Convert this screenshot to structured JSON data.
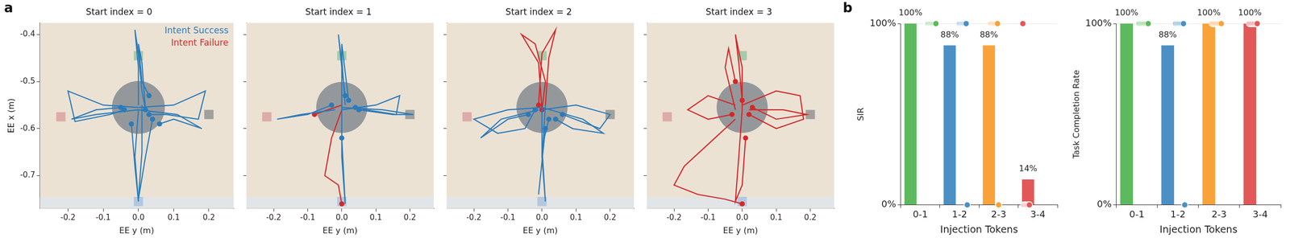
{
  "chart_data": [
    {
      "type": "line",
      "panel_label": "a",
      "title": "Start index = 0",
      "xlabel": "EE y (m)",
      "ylabel": "EE x (m)",
      "xlim": [
        -0.28,
        0.27
      ],
      "xticks": [
        -0.2,
        -0.1,
        {
          "value": 0,
          "label": "0.0"
        },
        0.1,
        0.2
      ],
      "ylim": [
        -0.77,
        -0.375
      ],
      "yticks": [
        -0.7,
        -0.6,
        -0.5,
        -0.4
      ],
      "grid": false,
      "legend": "upper right",
      "marker": "circle",
      "zone": {
        "x": 0,
        "y": -0.555,
        "r": 0.075
      },
      "targets": [
        {
          "x": 0,
          "y": -0.445,
          "color": "#8fc19c"
        },
        {
          "x": -0.22,
          "y": -0.575,
          "color": "#d99a9a"
        },
        {
          "x": 0,
          "y": -0.755,
          "color": "#a3bddc"
        },
        {
          "x": 0.2,
          "y": -0.57,
          "color": "#8a8a8a"
        }
      ],
      "series": [
        {
          "name": "Intent Success",
          "color": "#2b7bba",
          "trajectories": [
            {
              "x": [
                0.0,
                0.0,
                -0.01,
                0.0,
                0.01,
                0.02
              ],
              "y": [
                -0.55,
                -0.47,
                -0.39,
                -0.44,
                -0.52,
                -0.56
              ]
            },
            {
              "x": [
                0.02,
                0.01,
                0.0,
                0.01,
                0.03
              ],
              "y": [
                -0.56,
                -0.46,
                -0.42,
                -0.5,
                -0.53
              ]
            },
            {
              "x": [
                0.0,
                -0.01,
                0.0,
                -0.01,
                -0.02
              ],
              "y": [
                -0.56,
                -0.66,
                -0.755,
                -0.68,
                -0.59
              ]
            },
            {
              "x": [
                0.01,
                0.01,
                0.0,
                0.02,
                0.04
              ],
              "y": [
                -0.55,
                -0.65,
                -0.75,
                -0.66,
                -0.58
              ]
            },
            {
              "x": [
                0.0,
                -0.1,
                -0.2,
                -0.18,
                -0.08,
                -0.04
              ],
              "y": [
                -0.555,
                -0.55,
                -0.52,
                -0.585,
                -0.57,
                -0.56
              ]
            },
            {
              "x": [
                0.0,
                -0.12,
                -0.19,
                -0.12,
                -0.05
              ],
              "y": [
                -0.56,
                -0.57,
                -0.58,
                -0.56,
                -0.555
              ]
            },
            {
              "x": [
                0.0,
                0.1,
                0.19,
                0.17,
                0.08,
                0.03
              ],
              "y": [
                -0.555,
                -0.55,
                -0.52,
                -0.58,
                -0.57,
                -0.57
              ]
            },
            {
              "x": [
                0.0,
                0.11,
                0.18,
                0.1,
                0.06
              ],
              "y": [
                -0.56,
                -0.57,
                -0.6,
                -0.58,
                -0.59
              ]
            }
          ]
        },
        {
          "name": "Intent Failure",
          "color": "#d62728",
          "trajectories": []
        }
      ]
    },
    {
      "type": "line",
      "title": "Start index = 1",
      "xlabel": "EE y (m)",
      "xlim": [
        -0.28,
        0.27
      ],
      "xticks": [
        -0.2,
        -0.1,
        {
          "value": 0,
          "label": "0.0"
        },
        0.1,
        0.2
      ],
      "ylim": [
        -0.77,
        -0.375
      ],
      "yticks": [
        -0.7,
        -0.6,
        -0.5,
        -0.4
      ],
      "grid": false,
      "tick_labels": "x",
      "marker": "circle",
      "zone": {
        "x": 0,
        "y": -0.555,
        "r": 0.075
      },
      "targets": [
        {
          "x": 0,
          "y": -0.445,
          "color": "#8fc19c"
        },
        {
          "x": -0.22,
          "y": -0.575,
          "color": "#d99a9a"
        },
        {
          "x": 0,
          "y": -0.755,
          "color": "#a3bddc"
        },
        {
          "x": 0.2,
          "y": -0.57,
          "color": "#8a8a8a"
        }
      ],
      "series": [
        {
          "name": "Intent Success",
          "color": "#2b7bba",
          "trajectories": [
            {
              "x": [
                0.0,
                0.0,
                -0.01,
                0.0,
                0.01
              ],
              "y": [
                -0.56,
                -0.46,
                -0.4,
                -0.47,
                -0.53
              ]
            },
            {
              "x": [
                0.01,
                0.0,
                0.0,
                0.02
              ],
              "y": [
                -0.55,
                -0.45,
                -0.42,
                -0.54
              ]
            },
            {
              "x": [
                0.0,
                0.0,
                0.01,
                0.0
              ],
              "y": [
                -0.56,
                -0.66,
                -0.76,
                -0.62
              ]
            },
            {
              "x": [
                0.0,
                0.1,
                0.17,
                0.16,
                0.07,
                0.04
              ],
              "y": [
                -0.56,
                -0.55,
                -0.53,
                -0.57,
                -0.56,
                -0.555
              ]
            },
            {
              "x": [
                0.0,
                0.12,
                0.21,
                0.15,
                0.05
              ],
              "y": [
                -0.555,
                -0.56,
                -0.57,
                -0.57,
                -0.56
              ]
            },
            {
              "x": [
                -0.02,
                -0.12,
                -0.19,
                -0.1,
                -0.03
              ],
              "y": [
                -0.56,
                -0.57,
                -0.58,
                -0.57,
                -0.55
              ]
            }
          ]
        },
        {
          "name": "Intent Failure",
          "color": "#d62728",
          "trajectories": [
            {
              "x": [
                0.0,
                -0.03,
                -0.05,
                -0.01,
                0.0
              ],
              "y": [
                -0.56,
                -0.62,
                -0.7,
                -0.72,
                -0.76
              ]
            },
            {
              "x": [
                0.0,
                -0.04,
                -0.08,
                -0.08
              ],
              "y": [
                -0.55,
                -0.56,
                -0.57,
                -0.57
              ]
            }
          ]
        }
      ]
    },
    {
      "type": "line",
      "title": "Start index = 2",
      "xlabel": "EE y (m)",
      "xlim": [
        -0.28,
        0.27
      ],
      "xticks": [
        -0.2,
        -0.1,
        {
          "value": 0,
          "label": "0.0"
        },
        0.1,
        0.2
      ],
      "ylim": [
        -0.77,
        -0.375
      ],
      "yticks": [
        -0.7,
        -0.6,
        -0.5,
        -0.4
      ],
      "grid": false,
      "tick_labels": "x",
      "marker": "circle",
      "zone": {
        "x": 0,
        "y": -0.555,
        "r": 0.075
      },
      "targets": [
        {
          "x": 0,
          "y": -0.445,
          "color": "#8fc19c"
        },
        {
          "x": -0.22,
          "y": -0.575,
          "color": "#d99a9a"
        },
        {
          "x": 0,
          "y": -0.755,
          "color": "#a3bddc"
        },
        {
          "x": 0.2,
          "y": -0.57,
          "color": "#8a8a8a"
        }
      ],
      "series": [
        {
          "name": "Intent Success",
          "color": "#2b7bba",
          "trajectories": [
            {
              "x": [
                0.0,
                0.0,
                0.01,
                0.0,
                0.02
              ],
              "y": [
                -0.56,
                -0.66,
                -0.755,
                -0.64,
                -0.58
              ]
            },
            {
              "x": [
                0.01,
                0.0,
                -0.01,
                0.01
              ],
              "y": [
                -0.55,
                -0.67,
                -0.74,
                -0.6
              ]
            },
            {
              "x": [
                0.0,
                0.1,
                0.2,
                0.17,
                0.06
              ],
              "y": [
                -0.56,
                -0.55,
                -0.57,
                -0.6,
                -0.57
              ]
            },
            {
              "x": [
                0.0,
                0.12,
                0.18,
                0.09,
                0.04
              ],
              "y": [
                -0.555,
                -0.58,
                -0.61,
                -0.6,
                -0.58
              ]
            },
            {
              "x": [
                0.0,
                -0.1,
                -0.2,
                -0.13,
                -0.05,
                -0.02
              ],
              "y": [
                -0.555,
                -0.56,
                -0.58,
                -0.61,
                -0.6,
                -0.56
              ]
            },
            {
              "x": [
                -0.01,
                -0.12,
                -0.18,
                -0.1,
                -0.04
              ],
              "y": [
                -0.56,
                -0.58,
                -0.62,
                -0.58,
                -0.57
              ]
            }
          ]
        },
        {
          "name": "Intent Failure",
          "color": "#d62728",
          "trajectories": [
            {
              "x": [
                0.0,
                -0.01,
                -0.06,
                -0.02,
                0.01,
                0.0
              ],
              "y": [
                -0.56,
                -0.46,
                -0.4,
                -0.42,
                -0.5,
                -0.56
              ]
            },
            {
              "x": [
                0.01,
                0.02,
                0.04,
                0.0,
                -0.01
              ],
              "y": [
                -0.55,
                -0.45,
                -0.39,
                -0.44,
                -0.55
              ]
            }
          ]
        }
      ]
    },
    {
      "type": "line",
      "title": "Start index = 3",
      "xlabel": "EE y (m)",
      "xlim": [
        -0.28,
        0.27
      ],
      "xticks": [
        -0.2,
        -0.1,
        {
          "value": 0,
          "label": "0.0"
        },
        0.1,
        0.2
      ],
      "ylim": [
        -0.77,
        -0.375
      ],
      "yticks": [
        -0.7,
        -0.6,
        -0.5,
        -0.4
      ],
      "grid": false,
      "tick_labels": "x",
      "marker": "circle",
      "zone": {
        "x": 0,
        "y": -0.555,
        "r": 0.075
      },
      "targets": [
        {
          "x": 0,
          "y": -0.445,
          "color": "#8fc19c"
        },
        {
          "x": -0.22,
          "y": -0.575,
          "color": "#d99a9a"
        },
        {
          "x": 0,
          "y": -0.755,
          "color": "#a3bddc"
        },
        {
          "x": 0.2,
          "y": -0.57,
          "color": "#8a8a8a"
        }
      ],
      "series": [
        {
          "name": "Intent Failure",
          "color": "#d62728",
          "trajectories": [
            {
              "x": [
                0.0,
                0.0,
                -0.02,
                -0.01,
                0.0
              ],
              "y": [
                -0.56,
                -0.47,
                -0.4,
                -0.46,
                -0.54
              ]
            },
            {
              "x": [
                -0.02,
                -0.05,
                -0.04,
                -0.02
              ],
              "y": [
                -0.56,
                -0.47,
                -0.43,
                -0.5
              ]
            },
            {
              "x": [
                0.0,
                -0.01,
                -0.02,
                0.0,
                0.01
              ],
              "y": [
                -0.56,
                -0.66,
                -0.755,
                -0.72,
                -0.62
              ]
            },
            {
              "x": [
                -0.02,
                -0.08,
                -0.17,
                -0.2,
                -0.13,
                -0.05,
                0.0
              ],
              "y": [
                -0.58,
                -0.62,
                -0.68,
                -0.72,
                -0.74,
                -0.75,
                -0.76
              ]
            },
            {
              "x": [
                0.0,
                0.1,
                0.17,
                0.18,
                0.1,
                0.02
              ],
              "y": [
                -0.55,
                -0.52,
                -0.53,
                -0.58,
                -0.6,
                -0.57
              ]
            },
            {
              "x": [
                0.02,
                0.12,
                0.19,
                0.1,
                0.03
              ],
              "y": [
                -0.56,
                -0.56,
                -0.57,
                -0.58,
                -0.555
              ]
            },
            {
              "x": [
                -0.02,
                -0.1,
                -0.16,
                -0.1,
                -0.03
              ],
              "y": [
                -0.55,
                -0.53,
                -0.56,
                -0.58,
                -0.57
              ]
            }
          ]
        }
      ]
    },
    {
      "type": "bar",
      "panel_label": "b",
      "ylabel": "SIR",
      "xlabel": "Injection Tokens",
      "categories": [
        "0-1",
        "1-2",
        "2-3",
        "3-4"
      ],
      "values": [
        100,
        88,
        88,
        14
      ],
      "value_labels": [
        "100%",
        "88%",
        "88%",
        "14%"
      ],
      "trials": [
        [
          100,
          100,
          100,
          100,
          100,
          100,
          100,
          100
        ],
        [
          100,
          100,
          100,
          100,
          100,
          100,
          100,
          0
        ],
        [
          100,
          100,
          100,
          100,
          100,
          100,
          100,
          0
        ],
        [
          100,
          0,
          0,
          0,
          0,
          0,
          0
        ]
      ],
      "colors": [
        "#5db95d",
        "#4a90c4",
        "#f9a23a",
        "#e25757"
      ],
      "ylim": [
        0,
        100
      ],
      "yticks": [
        {
          "value": 0,
          "label": "0%"
        },
        {
          "value": 100,
          "label": "100%"
        }
      ],
      "grid": true,
      "data_labels": true
    },
    {
      "type": "bar",
      "ylabel": "Task Completion Rate",
      "xlabel": "Injection Tokens",
      "categories": [
        "0-1",
        "1-2",
        "2-3",
        "3-4"
      ],
      "values": [
        100,
        88,
        100,
        100
      ],
      "value_labels": [
        "100%",
        "88%",
        "100%",
        "100%"
      ],
      "trials": [
        [
          100,
          100,
          100,
          100,
          100,
          100,
          100,
          100
        ],
        [
          100,
          100,
          100,
          100,
          100,
          100,
          100,
          0
        ],
        [
          100,
          100,
          100,
          100,
          100,
          100,
          100,
          100
        ],
        [
          100,
          100,
          100,
          100,
          100,
          100,
          100
        ]
      ],
      "colors": [
        "#5db95d",
        "#4a90c4",
        "#f9a23a",
        "#e25757"
      ],
      "ylim": [
        0,
        100
      ],
      "yticks": [
        {
          "value": 0,
          "label": "0%"
        },
        {
          "value": 100,
          "label": "100%"
        }
      ],
      "grid": true,
      "data_labels": true
    }
  ]
}
